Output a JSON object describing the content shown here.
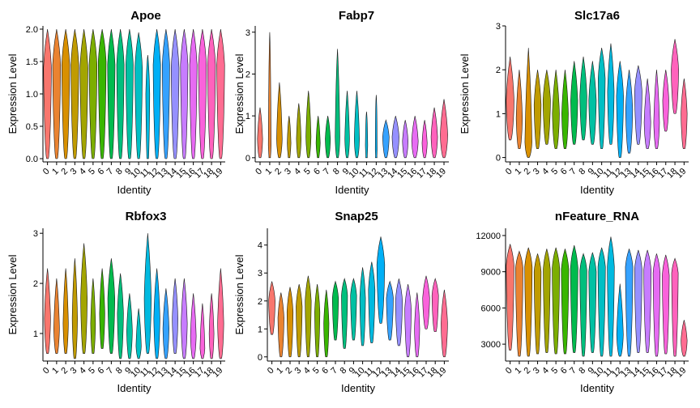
{
  "figure": {
    "title": ""
  },
  "chart_data": [
    {
      "type": "violin",
      "title": "Apoe",
      "xlabel": "Identity",
      "ylabel": "Expression Level",
      "categories": [
        "0",
        "1",
        "2",
        "3",
        "4",
        "5",
        "6",
        "7",
        "8",
        "9",
        "10",
        "11",
        "12",
        "13",
        "14",
        "15",
        "16",
        "17",
        "18",
        "19"
      ],
      "yticks": [
        0.0,
        0.5,
        1.0,
        1.5,
        2.0
      ],
      "ytick_labels": [
        "0.0",
        "0.5",
        "1.0",
        "1.5",
        "2.0"
      ],
      "ylim": [
        -0.05,
        2.05
      ],
      "violins": [
        {
          "min": 0,
          "max": 2.0,
          "peak": 1.4,
          "peak_width": 0.9
        },
        {
          "min": 0,
          "max": 2.0,
          "peak": 1.45,
          "peak_width": 0.9
        },
        {
          "min": 0,
          "max": 2.0,
          "peak": 1.45,
          "peak_width": 0.9
        },
        {
          "min": 0,
          "max": 2.0,
          "peak": 1.45,
          "peak_width": 0.9
        },
        {
          "min": 0,
          "max": 2.0,
          "peak": 1.4,
          "peak_width": 0.9
        },
        {
          "min": 0,
          "max": 2.0,
          "peak": 1.45,
          "peak_width": 0.9
        },
        {
          "min": 0,
          "max": 2.0,
          "peak": 1.5,
          "peak_width": 0.9
        },
        {
          "min": 0,
          "max": 2.0,
          "peak": 1.45,
          "peak_width": 0.85
        },
        {
          "min": 0,
          "max": 2.0,
          "peak": 1.45,
          "peak_width": 0.85
        },
        {
          "min": 0,
          "max": 2.0,
          "peak": 1.45,
          "peak_width": 0.85
        },
        {
          "min": 0,
          "max": 1.95,
          "peak": 1.4,
          "peak_width": 0.85
        },
        {
          "min": 0,
          "max": 1.6,
          "peak": 1.0,
          "peak_width": 0.45
        },
        {
          "min": 0,
          "max": 2.0,
          "peak": 1.45,
          "peak_width": 0.85
        },
        {
          "min": 0,
          "max": 2.0,
          "peak": 1.45,
          "peak_width": 0.85
        },
        {
          "min": 0,
          "max": 2.0,
          "peak": 1.4,
          "peak_width": 0.9
        },
        {
          "min": 0,
          "max": 2.0,
          "peak": 1.45,
          "peak_width": 0.85
        },
        {
          "min": 0,
          "max": 2.0,
          "peak": 1.45,
          "peak_width": 0.85
        },
        {
          "min": 0,
          "max": 2.0,
          "peak": 1.45,
          "peak_width": 0.9
        },
        {
          "min": 0,
          "max": 2.0,
          "peak": 1.45,
          "peak_width": 0.9
        },
        {
          "min": 0,
          "max": 2.0,
          "peak": 1.45,
          "peak_width": 0.9
        }
      ]
    },
    {
      "type": "violin",
      "title": "Fabp7",
      "xlabel": "Identity",
      "ylabel": "Expression Level",
      "categories": [
        "0",
        "1",
        "2",
        "3",
        "4",
        "5",
        "6",
        "7",
        "8",
        "9",
        "10",
        "11",
        "12",
        "13",
        "14",
        "15",
        "16",
        "17",
        "18",
        "19"
      ],
      "yticks": [
        0,
        1,
        2,
        3
      ],
      "ytick_labels": [
        "0",
        "1",
        "2",
        "3"
      ],
      "ylim": [
        -0.1,
        3.15
      ],
      "violins": [
        {
          "min": 0,
          "max": 1.2,
          "peak": 0.45,
          "peak_width": 0.55
        },
        {
          "min": 0,
          "max": 3.0,
          "peak": 0.3,
          "peak_width": 0.3
        },
        {
          "min": 0,
          "max": 1.8,
          "peak": 0.45,
          "peak_width": 0.6
        },
        {
          "min": 0,
          "max": 1.0,
          "peak": 0.35,
          "peak_width": 0.4
        },
        {
          "min": 0,
          "max": 1.3,
          "peak": 0.45,
          "peak_width": 0.5
        },
        {
          "min": 0,
          "max": 1.6,
          "peak": 0.5,
          "peak_width": 0.55
        },
        {
          "min": 0,
          "max": 1.0,
          "peak": 0.35,
          "peak_width": 0.45
        },
        {
          "min": 0,
          "max": 1.0,
          "peak": 0.45,
          "peak_width": 0.55
        },
        {
          "min": 0,
          "max": 2.6,
          "peak": 0.5,
          "peak_width": 0.5
        },
        {
          "min": 0,
          "max": 1.6,
          "peak": 0.45,
          "peak_width": 0.5
        },
        {
          "min": 0,
          "max": 1.6,
          "peak": 0.45,
          "peak_width": 0.55
        },
        {
          "min": 0,
          "max": 1.1,
          "peak": 0.3,
          "peak_width": 0.25
        },
        {
          "min": 0,
          "max": 1.5,
          "peak": 0.2,
          "peak_width": 0.2
        },
        {
          "min": 0,
          "max": 0.9,
          "peak": 0.5,
          "peak_width": 0.7
        },
        {
          "min": 0,
          "max": 1.0,
          "peak": 0.5,
          "peak_width": 0.75
        },
        {
          "min": 0,
          "max": 0.9,
          "peak": 0.4,
          "peak_width": 0.6
        },
        {
          "min": 0,
          "max": 1.0,
          "peak": 0.4,
          "peak_width": 0.7
        },
        {
          "min": 0,
          "max": 0.9,
          "peak": 0.35,
          "peak_width": 0.55
        },
        {
          "min": 0,
          "max": 1.2,
          "peak": 0.5,
          "peak_width": 0.7
        },
        {
          "min": 0,
          "max": 1.4,
          "peak": 0.55,
          "peak_width": 0.8
        }
      ]
    },
    {
      "type": "violin",
      "title": "Slc17a6",
      "xlabel": "Identity",
      "ylabel": "Expression Level",
      "categories": [
        "0",
        "1",
        "2",
        "3",
        "4",
        "5",
        "6",
        "7",
        "8",
        "9",
        "10",
        "11",
        "12",
        "13",
        "14",
        "15",
        "16",
        "17",
        "18",
        "19"
      ],
      "yticks": [
        0,
        1,
        2,
        3
      ],
      "ytick_labels": [
        "0",
        "1",
        "2",
        "3"
      ],
      "ylim": [
        -0.1,
        3.0
      ],
      "violins": [
        {
          "min": 0.4,
          "max": 2.3,
          "peak": 1.3,
          "peak_width": 0.9
        },
        {
          "min": 0.2,
          "max": 2.0,
          "peak": 0.9,
          "peak_width": 0.7
        },
        {
          "min": 0.0,
          "max": 2.5,
          "peak": 0.35,
          "peak_width": 0.8
        },
        {
          "min": 0.2,
          "max": 2.0,
          "peak": 1.2,
          "peak_width": 0.8
        },
        {
          "min": 0.3,
          "max": 2.0,
          "peak": 1.3,
          "peak_width": 0.85
        },
        {
          "min": 0.2,
          "max": 2.0,
          "peak": 1.0,
          "peak_width": 0.8
        },
        {
          "min": 0.2,
          "max": 2.0,
          "peak": 1.0,
          "peak_width": 0.75
        },
        {
          "min": 0.3,
          "max": 2.2,
          "peak": 1.3,
          "peak_width": 0.8
        },
        {
          "min": 0.4,
          "max": 2.3,
          "peak": 1.4,
          "peak_width": 0.8
        },
        {
          "min": 0.3,
          "max": 2.2,
          "peak": 1.3,
          "peak_width": 0.85
        },
        {
          "min": 0.2,
          "max": 2.5,
          "peak": 1.8,
          "peak_width": 0.8
        },
        {
          "min": 0.3,
          "max": 2.6,
          "peak": 1.5,
          "peak_width": 0.75
        },
        {
          "min": 0.0,
          "max": 2.2,
          "peak": 1.4,
          "peak_width": 0.8
        },
        {
          "min": 0.1,
          "max": 2.0,
          "peak": 1.1,
          "peak_width": 0.8
        },
        {
          "min": 0.3,
          "max": 2.1,
          "peak": 1.5,
          "peak_width": 0.85
        },
        {
          "min": 0.2,
          "max": 1.8,
          "peak": 0.8,
          "peak_width": 0.75
        },
        {
          "min": 0.2,
          "max": 2.0,
          "peak": 0.8,
          "peak_width": 0.65
        },
        {
          "min": 0.6,
          "max": 2.0,
          "peak": 1.3,
          "peak_width": 0.7
        },
        {
          "min": 1.0,
          "max": 2.7,
          "peak": 2.0,
          "peak_width": 0.85
        },
        {
          "min": 0.2,
          "max": 1.8,
          "peak": 1.0,
          "peak_width": 0.7
        }
      ]
    },
    {
      "type": "violin",
      "title": "Rbfox3",
      "xlabel": "Identity",
      "ylabel": "Expression Level",
      "categories": [
        "0",
        "1",
        "2",
        "3",
        "4",
        "5",
        "6",
        "7",
        "8",
        "9",
        "10",
        "11",
        "12",
        "13",
        "14",
        "15",
        "16",
        "17",
        "18",
        "19"
      ],
      "yticks": [
        1,
        2,
        3
      ],
      "ytick_labels": [
        "1",
        "2",
        "3"
      ],
      "ylim": [
        0.45,
        3.1
      ],
      "violins": [
        {
          "min": 0.6,
          "max": 2.3,
          "peak": 1.3,
          "peak_width": 0.7
        },
        {
          "min": 0.6,
          "max": 2.1,
          "peak": 1.1,
          "peak_width": 0.65
        },
        {
          "min": 0.6,
          "max": 2.3,
          "peak": 1.2,
          "peak_width": 0.6
        },
        {
          "min": 0.5,
          "max": 2.5,
          "peak": 1.3,
          "peak_width": 0.6
        },
        {
          "min": 0.6,
          "max": 2.8,
          "peak": 1.7,
          "peak_width": 0.75
        },
        {
          "min": 0.6,
          "max": 2.1,
          "peak": 1.2,
          "peak_width": 0.55
        },
        {
          "min": 0.7,
          "max": 2.3,
          "peak": 1.4,
          "peak_width": 0.6
        },
        {
          "min": 0.6,
          "max": 2.5,
          "peak": 1.7,
          "peak_width": 0.8
        },
        {
          "min": 0.5,
          "max": 2.2,
          "peak": 1.4,
          "peak_width": 0.7
        },
        {
          "min": 0.5,
          "max": 1.8,
          "peak": 1.05,
          "peak_width": 0.65
        },
        {
          "min": 0.5,
          "max": 1.5,
          "peak": 0.75,
          "peak_width": 0.6
        },
        {
          "min": 0.6,
          "max": 3.0,
          "peak": 1.7,
          "peak_width": 0.8
        },
        {
          "min": 0.5,
          "max": 2.3,
          "peak": 1.3,
          "peak_width": 0.7
        },
        {
          "min": 0.5,
          "max": 1.9,
          "peak": 1.1,
          "peak_width": 0.7
        },
        {
          "min": 0.6,
          "max": 2.1,
          "peak": 1.3,
          "peak_width": 0.65
        },
        {
          "min": 0.5,
          "max": 2.1,
          "peak": 1.2,
          "peak_width": 0.7
        },
        {
          "min": 0.5,
          "max": 1.8,
          "peak": 0.95,
          "peak_width": 0.65
        },
        {
          "min": 0.5,
          "max": 1.6,
          "peak": 0.7,
          "peak_width": 0.55
        },
        {
          "min": 0.5,
          "max": 1.8,
          "peak": 1.0,
          "peak_width": 0.55
        },
        {
          "min": 0.5,
          "max": 2.3,
          "peak": 1.2,
          "peak_width": 0.7
        }
      ]
    },
    {
      "type": "violin",
      "title": "Snap25",
      "xlabel": "Identity",
      "ylabel": "Expression Level",
      "categories": [
        "0",
        "1",
        "2",
        "3",
        "4",
        "5",
        "6",
        "7",
        "8",
        "9",
        "10",
        "11",
        "12",
        "13",
        "14",
        "15",
        "16",
        "17",
        "18",
        "19"
      ],
      "yticks": [
        0,
        1,
        2,
        3,
        4
      ],
      "ytick_labels": [
        "0",
        "1",
        "2",
        "3",
        "4"
      ],
      "ylim": [
        -0.15,
        4.6
      ],
      "violins": [
        {
          "min": 0.8,
          "max": 2.7,
          "peak": 2.0,
          "peak_width": 0.75
        },
        {
          "min": 0.0,
          "max": 2.3,
          "peak": 1.4,
          "peak_width": 0.7
        },
        {
          "min": 0.0,
          "max": 2.5,
          "peak": 1.6,
          "peak_width": 0.7
        },
        {
          "min": 0.0,
          "max": 2.6,
          "peak": 1.8,
          "peak_width": 0.7
        },
        {
          "min": 0.0,
          "max": 2.9,
          "peak": 2.0,
          "peak_width": 0.7
        },
        {
          "min": 0.0,
          "max": 2.6,
          "peak": 1.6,
          "peak_width": 0.6
        },
        {
          "min": 0.0,
          "max": 2.4,
          "peak": 1.2,
          "peak_width": 0.6
        },
        {
          "min": 0.6,
          "max": 2.7,
          "peak": 2.1,
          "peak_width": 0.7
        },
        {
          "min": 0.3,
          "max": 2.8,
          "peak": 2.2,
          "peak_width": 0.7
        },
        {
          "min": 0.6,
          "max": 2.8,
          "peak": 2.2,
          "peak_width": 0.7
        },
        {
          "min": 0.4,
          "max": 3.2,
          "peak": 2.1,
          "peak_width": 0.65
        },
        {
          "min": 0.5,
          "max": 3.4,
          "peak": 2.4,
          "peak_width": 0.75
        },
        {
          "min": 1.2,
          "max": 4.3,
          "peak": 3.3,
          "peak_width": 0.9
        },
        {
          "min": 0.6,
          "max": 2.7,
          "peak": 2.1,
          "peak_width": 0.8
        },
        {
          "min": 0.4,
          "max": 2.8,
          "peak": 2.0,
          "peak_width": 0.8
        },
        {
          "min": 0.0,
          "max": 2.6,
          "peak": 1.7,
          "peak_width": 0.75
        },
        {
          "min": 0.0,
          "max": 2.3,
          "peak": 1.0,
          "peak_width": 0.6
        },
        {
          "min": 1.0,
          "max": 2.9,
          "peak": 2.1,
          "peak_width": 0.8
        },
        {
          "min": 0.9,
          "max": 2.8,
          "peak": 2.2,
          "peak_width": 0.75
        },
        {
          "min": 0.0,
          "max": 2.4,
          "peak": 1.2,
          "peak_width": 0.75
        }
      ]
    },
    {
      "type": "violin",
      "title": "nFeature_RNA",
      "xlabel": "Identity",
      "ylabel": "",
      "categories": [
        "0",
        "1",
        "2",
        "3",
        "4",
        "5",
        "6",
        "7",
        "8",
        "9",
        "10",
        "11",
        "12",
        "13",
        "14",
        "15",
        "16",
        "17",
        "18",
        "19"
      ],
      "yticks": [
        3000,
        6000,
        9000,
        12000
      ],
      "ytick_labels": [
        "3000",
        "6000",
        "9000",
        "12000"
      ],
      "ylim": [
        1600,
        12600
      ],
      "violins": [
        {
          "min": 2500,
          "max": 11300,
          "peak": 9500,
          "peak_width": 0.9
        },
        {
          "min": 2000,
          "max": 10700,
          "peak": 9300,
          "peak_width": 0.85
        },
        {
          "min": 2000,
          "max": 11000,
          "peak": 9400,
          "peak_width": 0.85
        },
        {
          "min": 2200,
          "max": 10500,
          "peak": 9000,
          "peak_width": 0.8
        },
        {
          "min": 2300,
          "max": 10900,
          "peak": 9200,
          "peak_width": 0.8
        },
        {
          "min": 2200,
          "max": 11000,
          "peak": 9300,
          "peak_width": 0.85
        },
        {
          "min": 2200,
          "max": 10900,
          "peak": 9200,
          "peak_width": 0.85
        },
        {
          "min": 2300,
          "max": 11200,
          "peak": 9300,
          "peak_width": 0.85
        },
        {
          "min": 2000,
          "max": 10500,
          "peak": 9100,
          "peak_width": 0.8
        },
        {
          "min": 2300,
          "max": 10600,
          "peak": 9000,
          "peak_width": 0.85
        },
        {
          "min": 2000,
          "max": 11000,
          "peak": 9400,
          "peak_width": 0.85
        },
        {
          "min": 2000,
          "max": 11900,
          "peak": 9400,
          "peak_width": 0.8
        },
        {
          "min": 2000,
          "max": 8000,
          "peak": 3800,
          "peak_width": 0.75
        },
        {
          "min": 2000,
          "max": 10900,
          "peak": 9400,
          "peak_width": 0.85
        },
        {
          "min": 2300,
          "max": 10800,
          "peak": 9200,
          "peak_width": 0.85
        },
        {
          "min": 2300,
          "max": 10800,
          "peak": 9100,
          "peak_width": 0.85
        },
        {
          "min": 2000,
          "max": 10500,
          "peak": 8900,
          "peak_width": 0.8
        },
        {
          "min": 2200,
          "max": 10400,
          "peak": 8700,
          "peak_width": 0.8
        },
        {
          "min": 2000,
          "max": 10100,
          "peak": 8900,
          "peak_width": 0.75
        },
        {
          "min": 2000,
          "max": 5000,
          "peak": 3300,
          "peak_width": 0.7
        }
      ]
    }
  ],
  "palette": [
    "#F8766D",
    "#EA8331",
    "#D89000",
    "#C09B00",
    "#A3A500",
    "#7CAE00",
    "#39B600",
    "#00BB4E",
    "#00BF7D",
    "#00C1A3",
    "#00BFC4",
    "#00BAE0",
    "#00B0F6",
    "#35A2FF",
    "#9590FF",
    "#C77CFF",
    "#E76BF3",
    "#FA62DB",
    "#FF62BC",
    "#FF6C91"
  ]
}
